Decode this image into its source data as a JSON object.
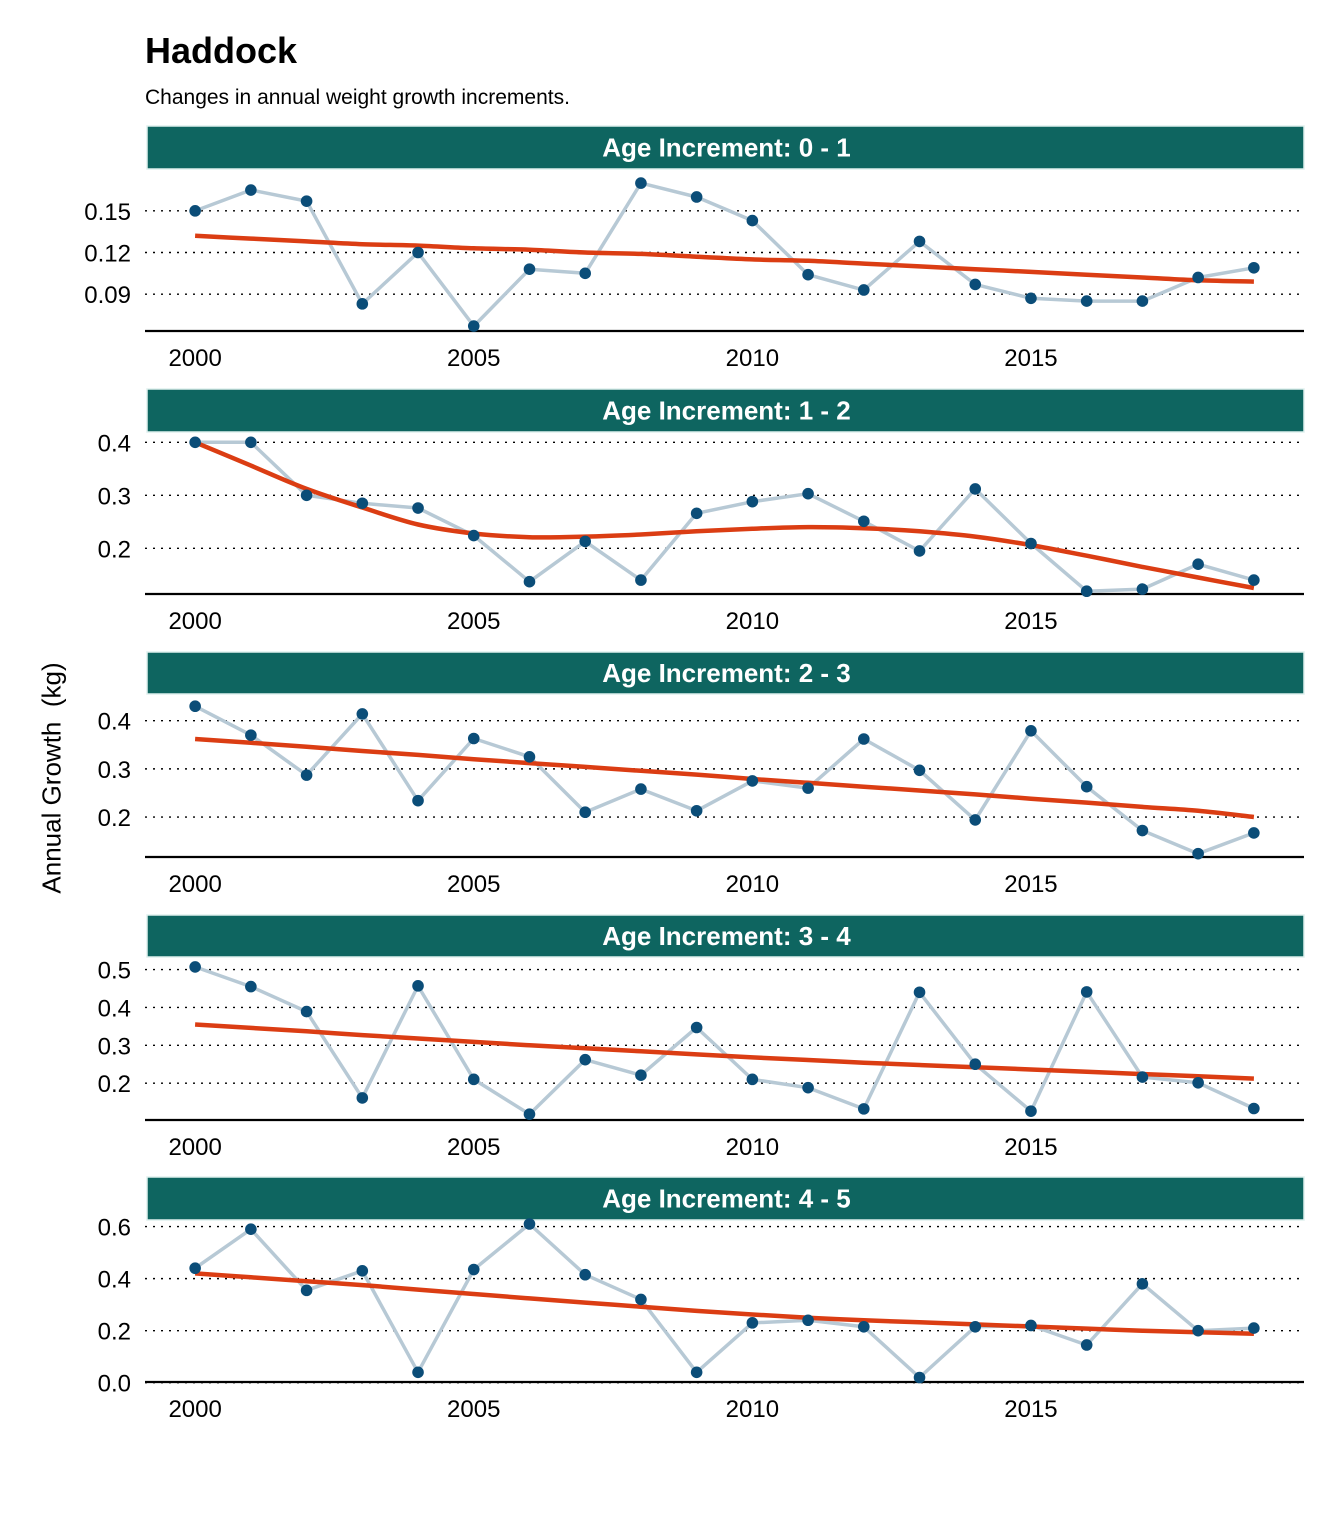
{
  "title": "Haddock",
  "subtitle": "Changes in annual weight growth increments.",
  "y_axis_label": "Annual Growth  (kg)",
  "colors": {
    "strip": "#0e6560",
    "strip_text": "#ffffff",
    "series_line": "#b7c9d5",
    "points": "#0b4d78",
    "trend": "#db3d13",
    "axis": "#000000"
  },
  "chart_data": [
    {
      "type": "line",
      "facet_label": "Age Increment: 0 - 1",
      "x": [
        2000,
        2001,
        2002,
        2003,
        2004,
        2005,
        2006,
        2007,
        2008,
        2009,
        2010,
        2011,
        2012,
        2013,
        2014,
        2015,
        2016,
        2017,
        2018,
        2019
      ],
      "y": [
        0.15,
        0.165,
        0.157,
        0.083,
        0.12,
        0.067,
        0.108,
        0.105,
        0.17,
        0.16,
        0.143,
        0.104,
        0.093,
        0.128,
        0.097,
        0.087,
        0.085,
        0.085,
        0.102,
        0.109
      ],
      "trend": [
        0.132,
        0.13,
        0.128,
        0.126,
        0.125,
        0.123,
        0.122,
        0.12,
        0.119,
        0.117,
        0.115,
        0.114,
        0.112,
        0.11,
        0.108,
        0.106,
        0.104,
        0.102,
        0.1,
        0.099
      ],
      "xticks": [
        2000,
        2005,
        2010,
        2015
      ],
      "yticks": [
        0.09,
        0.12,
        0.15
      ],
      "ytick_labels": [
        "0.09",
        "0.12",
        "0.15"
      ],
      "xlim": [
        1999.1,
        2019.9
      ],
      "ylim": [
        0.062,
        0.178
      ],
      "grid": "dotted horizontal"
    },
    {
      "type": "line",
      "facet_label": "Age Increment: 1 - 2",
      "x": [
        2000,
        2001,
        2002,
        2003,
        2004,
        2005,
        2006,
        2007,
        2008,
        2009,
        2010,
        2011,
        2012,
        2013,
        2014,
        2015,
        2016,
        2017,
        2018,
        2019
      ],
      "y": [
        0.4,
        0.4,
        0.3,
        0.285,
        0.276,
        0.224,
        0.137,
        0.213,
        0.14,
        0.266,
        0.288,
        0.303,
        0.251,
        0.195,
        0.312,
        0.209,
        0.119,
        0.123,
        0.17,
        0.14
      ],
      "trend": [
        0.4,
        0.356,
        0.312,
        0.277,
        0.245,
        0.228,
        0.221,
        0.222,
        0.226,
        0.232,
        0.237,
        0.24,
        0.238,
        0.232,
        0.222,
        0.206,
        0.186,
        0.165,
        0.145,
        0.125
      ],
      "xticks": [
        2000,
        2005,
        2010,
        2015
      ],
      "yticks": [
        0.2,
        0.3,
        0.4
      ],
      "ytick_labels": [
        "0.2",
        "0.3",
        "0.4"
      ],
      "xlim": [
        1999.1,
        2019.9
      ],
      "ylim": [
        0.11,
        0.41
      ],
      "grid": "dotted horizontal"
    },
    {
      "type": "line",
      "facet_label": "Age Increment: 2 - 3",
      "x": [
        2000,
        2001,
        2002,
        2003,
        2004,
        2005,
        2006,
        2007,
        2008,
        2009,
        2010,
        2011,
        2012,
        2013,
        2014,
        2015,
        2016,
        2017,
        2018,
        2019
      ],
      "y": [
        0.43,
        0.37,
        0.287,
        0.414,
        0.234,
        0.363,
        0.325,
        0.21,
        0.258,
        0.213,
        0.275,
        0.26,
        0.362,
        0.297,
        0.194,
        0.379,
        0.263,
        0.172,
        0.124,
        0.167
      ],
      "trend": [
        0.362,
        0.354,
        0.346,
        0.337,
        0.329,
        0.32,
        0.312,
        0.304,
        0.296,
        0.288,
        0.279,
        0.271,
        0.263,
        0.255,
        0.247,
        0.238,
        0.23,
        0.221,
        0.213,
        0.2
      ],
      "xticks": [
        2000,
        2005,
        2010,
        2015
      ],
      "yticks": [
        0.2,
        0.3,
        0.4
      ],
      "ytick_labels": [
        "0.2",
        "0.3",
        "0.4"
      ],
      "xlim": [
        1999.1,
        2019.9
      ],
      "ylim": [
        0.115,
        0.445
      ],
      "grid": "dotted horizontal"
    },
    {
      "type": "line",
      "facet_label": "Age Increment: 3 - 4",
      "x": [
        2000,
        2001,
        2002,
        2003,
        2004,
        2005,
        2006,
        2007,
        2008,
        2009,
        2010,
        2011,
        2012,
        2013,
        2014,
        2015,
        2016,
        2017,
        2018,
        2019
      ],
      "y": [
        0.507,
        0.455,
        0.389,
        0.161,
        0.457,
        0.21,
        0.118,
        0.262,
        0.221,
        0.347,
        0.21,
        0.188,
        0.132,
        0.44,
        0.25,
        0.126,
        0.441,
        0.216,
        0.201,
        0.133
      ],
      "trend": [
        0.355,
        0.346,
        0.337,
        0.327,
        0.318,
        0.309,
        0.3,
        0.292,
        0.284,
        0.276,
        0.268,
        0.261,
        0.254,
        0.248,
        0.242,
        0.236,
        0.23,
        0.224,
        0.218,
        0.212
      ],
      "xticks": [
        2000,
        2005,
        2010,
        2015
      ],
      "yticks": [
        0.2,
        0.3,
        0.4,
        0.5
      ],
      "ytick_labels": [
        "0.2",
        "0.3",
        "0.4",
        "0.5"
      ],
      "xlim": [
        1999.1,
        2019.9
      ],
      "ylim": [
        0.1,
        0.52
      ],
      "grid": "dotted horizontal"
    },
    {
      "type": "line",
      "facet_label": "Age Increment: 4 - 5",
      "x": [
        2000,
        2001,
        2002,
        2003,
        2004,
        2005,
        2006,
        2007,
        2008,
        2009,
        2010,
        2011,
        2012,
        2013,
        2014,
        2015,
        2016,
        2017,
        2018,
        2019
      ],
      "y": [
        0.44,
        0.59,
        0.355,
        0.43,
        0.04,
        0.435,
        0.61,
        0.415,
        0.32,
        0.04,
        0.23,
        0.24,
        0.215,
        0.02,
        0.215,
        0.22,
        0.145,
        0.38,
        0.2,
        0.21
      ],
      "trend": [
        0.42,
        0.405,
        0.39,
        0.375,
        0.358,
        0.341,
        0.324,
        0.308,
        0.292,
        0.276,
        0.262,
        0.25,
        0.24,
        0.232,
        0.224,
        0.216,
        0.208,
        0.2,
        0.194,
        0.188
      ],
      "xticks": [
        2000,
        2005,
        2010,
        2015
      ],
      "yticks": [
        0.0,
        0.2,
        0.4,
        0.6
      ],
      "ytick_labels": [
        "0.0",
        "0.2",
        "0.4",
        "0.6"
      ],
      "xlim": [
        1999.1,
        2019.9
      ],
      "ylim": [
        -0.005,
        0.61
      ],
      "grid": "dotted horizontal"
    }
  ]
}
